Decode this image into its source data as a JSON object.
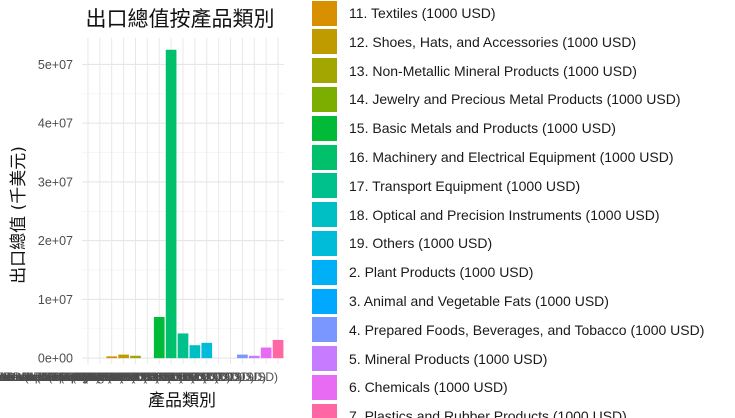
{
  "chart_data": {
    "type": "bar",
    "title": "出口總值按產品類別",
    "xlabel": "產品類別",
    "ylabel": "出口總值 (千美元)",
    "ylim": [
      -1000000,
      54500000
    ],
    "yticks": [
      0,
      10000000,
      20000000,
      30000000,
      40000000,
      50000000
    ],
    "ytick_labels": [
      "0e+00",
      "1e+07",
      "2e+07",
      "3e+07",
      "4e+07",
      "5e+07"
    ],
    "grid": true,
    "legend_position": "right",
    "categories": [
      "1. Live Animals and Animal Products (1000 USD)",
      "10. Pulp and Paper Products (1000 USD)",
      "11. Textiles (1000 USD)",
      "12. Shoes, Hats, and Accessories (1000 USD)",
      "13. Non-Metallic Mineral Products (1000 USD)",
      "14. Jewelry and Precious Metal Products (1000 USD)",
      "15. Basic Metals and Products (1000 USD)",
      "16. Machinery and Electrical Equipment (1000 USD)",
      "17. Transport Equipment (1000 USD)",
      "18. Optical and Precision Instruments (1000 USD)",
      "19. Others (1000 USD)",
      "2. Plant Products (1000 USD)",
      "3. Animal and Vegetable Fats (1000 USD)",
      "4. Prepared Foods, Beverages, and Tobacco (1000 USD)",
      "5. Mineral Products (1000 USD)",
      "6. Chemicals (1000 USD)",
      "7. Plastics and Rubber Products (1000 USD)"
    ],
    "values": [
      0,
      0,
      300000,
      600000,
      400000,
      0,
      7000000,
      52500000,
      4200000,
      2200000,
      2600000,
      0,
      0,
      600000,
      400000,
      1800000,
      3100000
    ],
    "colors": [
      "#F8766D",
      "#E58700",
      "#D89000",
      "#C09B00",
      "#A3A500",
      "#7CAE00",
      "#00BA38",
      "#00C06B",
      "#00C08B",
      "#00BFC4",
      "#00BCD8",
      "#00B0F6",
      "#00A9FF",
      "#7997FF",
      "#C77CFF",
      "#E76BF3",
      "#FF67A4"
    ],
    "legend_entries": [
      "11. Textiles (1000 USD)",
      "12. Shoes, Hats, and Accessories (1000 USD)",
      "13. Non-Metallic Mineral Products (1000 USD)",
      "14. Jewelry and Precious Metal Products (1000 USD)",
      "15. Basic Metals and Products (1000 USD)",
      "16. Machinery and Electrical Equipment (1000 USD)",
      "17. Transport Equipment (1000 USD)",
      "18. Optical and Precision Instruments (1000 USD)",
      "19. Others (1000 USD)",
      "2. Plant Products (1000 USD)",
      "3. Animal and Vegetable Fats (1000 USD)",
      "4. Prepared Foods, Beverages, and Tobacco (1000 USD)",
      "5. Mineral Products (1000 USD)",
      "6. Chemicals (1000 USD)",
      "7. Plastics and Rubber Products (1000 USD)"
    ],
    "legend_colors": [
      "#D89000",
      "#C09B00",
      "#A3A500",
      "#7CAE00",
      "#00BA38",
      "#00C06B",
      "#00C08B",
      "#00BFC4",
      "#00BCD8",
      "#00B0F6",
      "#00A9FF",
      "#7997FF",
      "#C77CFF",
      "#E76BF3",
      "#FF67A4"
    ]
  }
}
